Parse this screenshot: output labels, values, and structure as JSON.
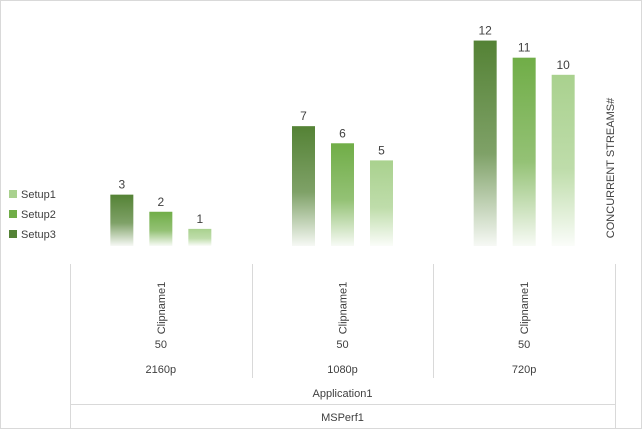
{
  "chart_data": {
    "type": "bar",
    "y_axis_title": "CONCURRENT STREAMS#",
    "series": [
      {
        "name": "Setup3",
        "color": "#548235",
        "values": [
          3,
          7,
          12
        ]
      },
      {
        "name": "Setup2",
        "color": "#70ad47",
        "values": [
          2,
          6,
          11
        ]
      },
      {
        "name": "Setup1",
        "color": "#a9d18e",
        "values": [
          1,
          5,
          10
        ]
      }
    ],
    "legend_order": [
      "Setup1",
      "Setup2",
      "Setup3"
    ],
    "legend_position": "left",
    "categories": [
      {
        "clip": "Clipname1",
        "bitrate": "50",
        "resolution": "2160p"
      },
      {
        "clip": "Clipname1",
        "bitrate": "50",
        "resolution": "1080p"
      },
      {
        "clip": "Clipname1",
        "bitrate": "50",
        "resolution": "720p"
      }
    ],
    "outer_labels": {
      "application": "Application1",
      "suite": "MSPerf1"
    },
    "ylim": [
      0,
      12.5
    ],
    "data_labels": true,
    "grid": false,
    "gradient_fill": "solid top fading to white at bottom"
  }
}
